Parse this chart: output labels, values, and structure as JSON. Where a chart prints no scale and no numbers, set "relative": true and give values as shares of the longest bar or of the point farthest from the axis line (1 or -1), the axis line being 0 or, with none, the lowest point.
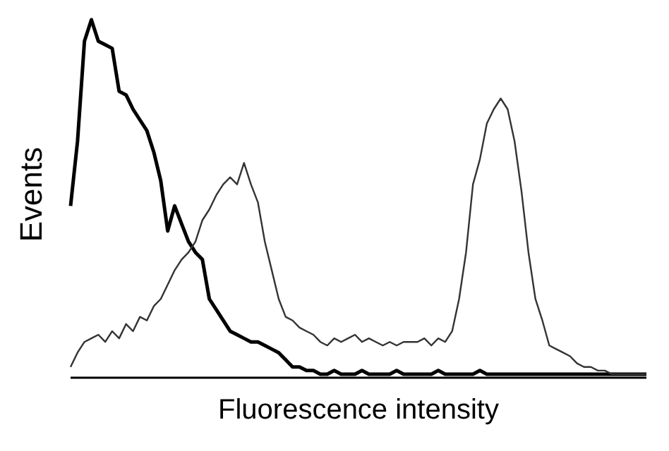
{
  "chart_data": {
    "type": "line",
    "relative": true,
    "xlabel": "Fluorescence intensity",
    "ylabel": "Events",
    "categories": [
      null,
      null,
      null,
      null,
      null,
      null,
      null,
      null,
      null,
      null,
      null,
      null,
      null,
      null,
      null,
      null,
      null,
      null,
      null,
      null,
      null,
      null,
      null,
      null,
      null,
      null,
      null,
      null,
      null,
      null,
      null,
      null,
      null,
      null,
      null,
      null,
      null,
      null,
      null,
      null,
      null,
      null,
      null,
      null,
      null,
      null,
      null,
      null,
      null,
      null,
      null,
      null,
      null,
      null,
      null,
      null,
      null,
      null,
      null,
      null,
      null,
      null,
      null,
      null,
      null,
      null,
      null,
      null,
      null,
      null,
      null,
      null,
      null,
      null,
      null,
      null,
      null,
      null,
      null,
      null,
      null,
      null,
      null,
      null
    ],
    "series": [
      {
        "color": "#000000",
        "values": [
          0.48,
          0.66,
          0.94,
          1.0,
          0.94,
          0.93,
          0.92,
          0.8,
          0.79,
          0.75,
          0.72,
          0.69,
          0.63,
          0.55,
          0.41,
          0.48,
          0.43,
          0.38,
          0.35,
          0.33,
          0.22,
          0.19,
          0.16,
          0.13,
          0.12,
          0.11,
          0.1,
          0.1,
          0.09,
          0.08,
          0.07,
          0.05,
          0.03,
          0.03,
          0.02,
          0.02,
          0.01,
          0.01,
          0.02,
          0.01,
          0.01,
          0.01,
          0.02,
          0.01,
          0.01,
          0.01,
          0.01,
          0.02,
          0.01,
          0.01,
          0.01,
          0.01,
          0.01,
          0.02,
          0.01,
          0.01,
          0.01,
          0.01,
          0.01,
          0.02,
          0.01,
          0.01,
          0.01,
          0.01,
          0.01,
          0.01,
          0.01,
          0.01,
          0.01,
          0.01,
          0.01,
          0.01,
          0.01,
          0.01,
          0.01,
          0.01,
          0.01,
          0.01,
          0.01,
          0.01,
          0.01,
          0.01,
          0.01,
          0.01
        ]
      },
      {
        "color": "#333333",
        "values": [
          0.03,
          0.07,
          0.1,
          0.11,
          0.12,
          0.1,
          0.13,
          0.11,
          0.15,
          0.13,
          0.17,
          0.16,
          0.2,
          0.22,
          0.26,
          0.3,
          0.33,
          0.35,
          0.38,
          0.44,
          0.47,
          0.51,
          0.54,
          0.56,
          0.54,
          0.6,
          0.54,
          0.49,
          0.38,
          0.3,
          0.22,
          0.17,
          0.16,
          0.14,
          0.13,
          0.12,
          0.1,
          0.09,
          0.11,
          0.1,
          0.11,
          0.12,
          0.1,
          0.11,
          0.1,
          0.09,
          0.1,
          0.09,
          0.1,
          0.1,
          0.1,
          0.11,
          0.09,
          0.11,
          0.1,
          0.13,
          0.22,
          0.35,
          0.54,
          0.61,
          0.71,
          0.75,
          0.78,
          0.75,
          0.66,
          0.52,
          0.35,
          0.22,
          0.16,
          0.09,
          0.08,
          0.07,
          0.06,
          0.04,
          0.03,
          0.03,
          0.02,
          0.02,
          0.01,
          0.01,
          0.01,
          0.01,
          0.01,
          0.01
        ]
      }
    ]
  }
}
